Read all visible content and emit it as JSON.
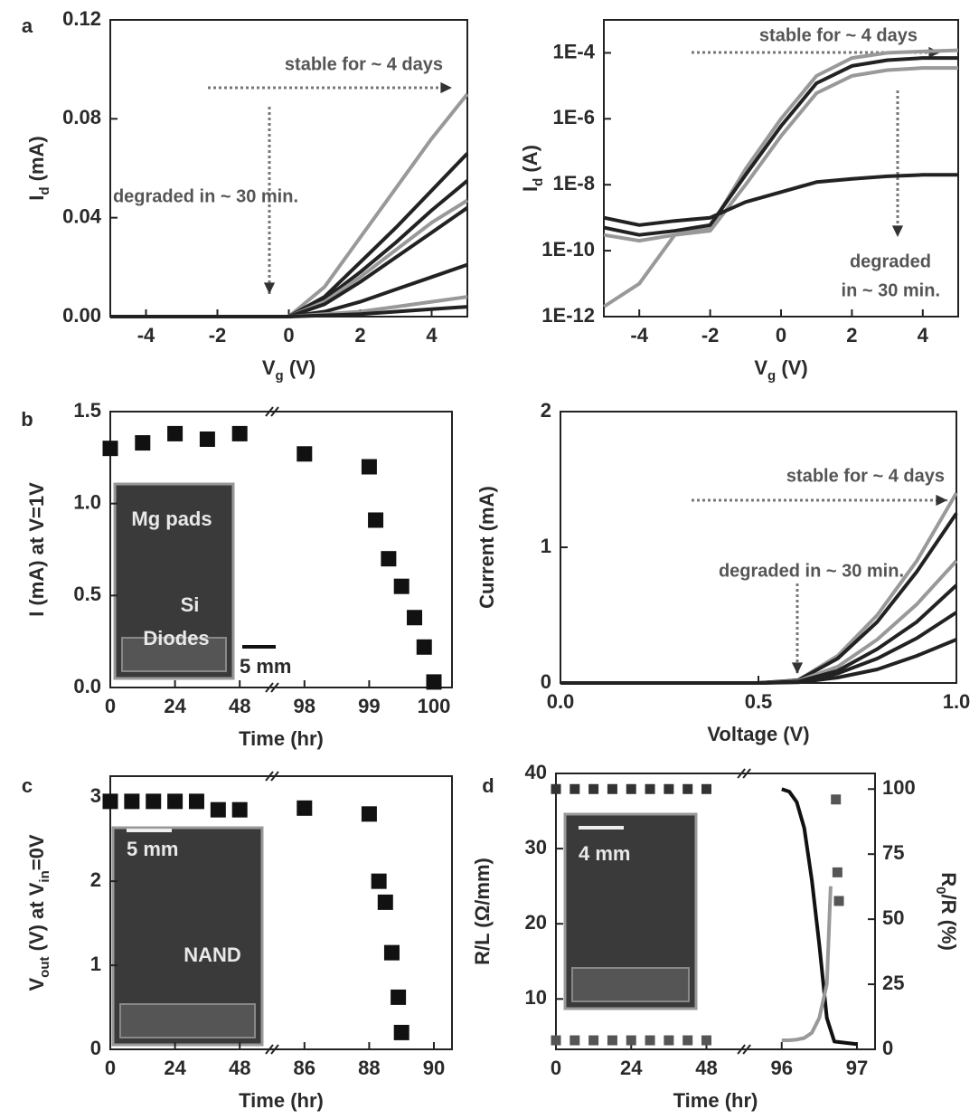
{
  "chart_data": [
    {
      "type": "line",
      "panel_label": "a",
      "xlabel": [
        "V",
        "g",
        " (V)"
      ],
      "ylabel": [
        "I",
        "d",
        " (mA)"
      ],
      "annotations": [
        "stable for ~ 4 days",
        "degraded in ~ 30 min."
      ],
      "x": [
        -5,
        -4,
        -3,
        -2,
        -1,
        0,
        1,
        2,
        3,
        4,
        5
      ],
      "xlim": [
        -5,
        5
      ],
      "xticks": [
        -4,
        -2,
        0,
        2,
        4
      ],
      "ylim": [
        0,
        0.12
      ],
      "yticks": [
        {
          "value": 0,
          "label": "0.00"
        },
        0.04,
        0.08,
        0.12
      ],
      "series": [
        {
          "color": "#999999",
          "values": [
            0,
            0,
            0,
            0,
            0,
            0,
            0.012,
            0.032,
            0.052,
            0.072,
            0.09
          ]
        },
        {
          "color": "#222222",
          "values": [
            0,
            0,
            0,
            0,
            0,
            0,
            0.008,
            0.022,
            0.036,
            0.051,
            0.066
          ]
        },
        {
          "color": "#222222",
          "values": [
            0,
            0,
            0,
            0,
            0,
            0,
            0.007,
            0.018,
            0.03,
            0.043,
            0.055
          ]
        },
        {
          "color": "#999999",
          "values": [
            0,
            0,
            0,
            0,
            0,
            0,
            0.006,
            0.016,
            0.027,
            0.038,
            0.047
          ]
        },
        {
          "color": "#222222",
          "values": [
            0,
            0,
            0,
            0,
            0,
            0,
            0.005,
            0.014,
            0.024,
            0.034,
            0.044
          ]
        },
        {
          "color": "#222222",
          "values": [
            0,
            0,
            0,
            0,
            0,
            0,
            0.002,
            0.006,
            0.011,
            0.016,
            0.021
          ]
        },
        {
          "color": "#999999",
          "values": [
            0,
            0,
            0,
            0,
            0,
            0,
            0.001,
            0.002,
            0.004,
            0.006,
            0.008
          ]
        },
        {
          "color": "#222222",
          "values": [
            0,
            0,
            0,
            0,
            0,
            0,
            0.0005,
            0.001,
            0.002,
            0.003,
            0.004
          ]
        }
      ]
    },
    {
      "type": "line",
      "log_y": true,
      "xlabel": [
        "V",
        "g",
        " (V)"
      ],
      "ylabel": [
        "I",
        "d",
        " (A)"
      ],
      "annotations": [
        "stable for ~ 4 days",
        "degraded",
        "in ~ 30 min."
      ],
      "x": [
        -5,
        -4,
        -3,
        -2,
        -1,
        0,
        1,
        2,
        3,
        4,
        5
      ],
      "xlim": [
        -5,
        5
      ],
      "xticks": [
        -4,
        -2,
        0,
        2,
        4
      ],
      "ylim": [
        1e-12,
        0.001
      ],
      "yticks": [
        {
          "value": 1e-12,
          "label": "1E-12"
        },
        {
          "value": 1e-10,
          "label": "1E-10"
        },
        {
          "value": 1e-08,
          "label": "1E-8"
        },
        {
          "value": 1e-06,
          "label": "1E-6"
        },
        {
          "value": 0.0001,
          "label": "1E-4"
        }
      ],
      "series": [
        {
          "color": "#999999",
          "values": [
            3e-10,
            2e-10,
            3e-10,
            5e-10,
            3e-08,
            1e-06,
            2e-05,
            7e-05,
            0.0001,
            0.00011,
            0.00012
          ]
        },
        {
          "color": "#222222",
          "values": [
            5e-10,
            3e-10,
            4e-10,
            6e-10,
            2e-08,
            6e-07,
            1.2e-05,
            4e-05,
            6e-05,
            7e-05,
            7e-05
          ]
        },
        {
          "color": "#999999",
          "values": [
            2e-12,
            1e-11,
            3e-10,
            4e-10,
            1e-08,
            3e-07,
            6e-06,
            2e-05,
            3e-05,
            3.5e-05,
            3.5e-05
          ]
        },
        {
          "color": "#222222",
          "values": [
            1e-09,
            6e-10,
            8e-10,
            1e-09,
            3e-09,
            6e-09,
            1.2e-08,
            1.5e-08,
            1.8e-08,
            2e-08,
            2e-08
          ]
        }
      ]
    },
    {
      "type": "scatter",
      "panel_label": "b",
      "x_axis_break": true,
      "xlabel": [
        "Time (hr)"
      ],
      "ylabel": [
        "I (mA) at V=1V"
      ],
      "inset_labels": [
        "Mg pads",
        "Si",
        "Diodes",
        "5 mm"
      ],
      "xticks": [
        0,
        24,
        48,
        98,
        99,
        100
      ],
      "ylim": [
        0,
        1.5
      ],
      "yticks": [
        {
          "value": 0,
          "label": "0.0"
        },
        0.5,
        {
          "value": 1,
          "label": "1.0"
        },
        1.5
      ],
      "series": [
        {
          "color": "#111111",
          "marker": "square",
          "x": [
            0,
            12,
            24,
            36,
            48,
            98,
            99,
            99.1,
            99.3,
            99.5,
            99.7,
            99.85,
            100
          ],
          "values": [
            1.3,
            1.33,
            1.38,
            1.35,
            1.38,
            1.27,
            1.2,
            0.91,
            0.7,
            0.55,
            0.38,
            0.22,
            0.03
          ]
        }
      ]
    },
    {
      "type": "line",
      "xlabel": [
        "Voltage (V)"
      ],
      "ylabel": [
        "Current (mA)"
      ],
      "annotations": [
        "stable for ~ 4 days",
        "degraded in ~ 30 min."
      ],
      "x": [
        0,
        0.5,
        0.6,
        0.7,
        0.8,
        0.9,
        1
      ],
      "xlim": [
        0,
        1
      ],
      "xticks": [
        {
          "value": 0,
          "label": "0.0"
        },
        0.5,
        {
          "value": 1,
          "label": "1.0"
        }
      ],
      "ylim": [
        0,
        2
      ],
      "yticks": [
        0,
        1,
        2
      ],
      "series": [
        {
          "color": "#999999",
          "values": [
            0,
            0,
            0.02,
            0.2,
            0.5,
            0.9,
            1.4
          ]
        },
        {
          "color": "#222222",
          "values": [
            0,
            0,
            0.02,
            0.18,
            0.45,
            0.82,
            1.25
          ]
        },
        {
          "color": "#999999",
          "values": [
            0,
            0,
            0.015,
            0.12,
            0.32,
            0.58,
            0.9
          ]
        },
        {
          "color": "#222222",
          "values": [
            0,
            0,
            0.01,
            0.09,
            0.25,
            0.45,
            0.72
          ]
        },
        {
          "color": "#222222",
          "values": [
            0,
            0,
            0.008,
            0.07,
            0.18,
            0.33,
            0.52
          ]
        },
        {
          "color": "#222222",
          "values": [
            0,
            0,
            0.005,
            0.04,
            0.1,
            0.2,
            0.32
          ]
        }
      ]
    },
    {
      "type": "scatter",
      "panel_label": "c",
      "x_axis_break": true,
      "xlabel": [
        "Time (hr)"
      ],
      "ylabel": [
        "V",
        "out",
        " (V) at V",
        "in",
        "=0V"
      ],
      "inset_labels": [
        "5 mm",
        "NAND"
      ],
      "xticks": [
        0,
        24,
        48,
        86,
        88,
        90
      ],
      "ylim": [
        0,
        3.25
      ],
      "yticks": [
        0,
        1,
        2,
        3
      ],
      "series": [
        {
          "color": "#111111",
          "marker": "square",
          "x": [
            0,
            8,
            16,
            24,
            32,
            40,
            48,
            86,
            88,
            88.3,
            88.5,
            88.7,
            88.9,
            89
          ],
          "values": [
            2.95,
            2.95,
            2.95,
            2.95,
            2.95,
            2.85,
            2.85,
            2.87,
            2.8,
            2.0,
            1.75,
            1.15,
            0.62,
            0.2
          ]
        }
      ]
    },
    {
      "type": "scatter",
      "panel_label": "d",
      "x_axis_break": true,
      "xlabel": [
        "Time (hr)"
      ],
      "ylabel": [
        "R/L (Ω/mm)"
      ],
      "y2label": [
        "R",
        "0",
        "/R (%)"
      ],
      "inset_labels": [
        "4 mm"
      ],
      "xticks": [
        0,
        24,
        48,
        96,
        97
      ],
      "ylim": [
        3.3,
        40
      ],
      "yticks": [
        10,
        20,
        30,
        40
      ],
      "y2lim": [
        0,
        106
      ],
      "y2ticks": [
        0,
        25,
        50,
        75,
        100
      ],
      "series": [
        {
          "color": "#555555",
          "marker": "square",
          "x": [
            0,
            6,
            12,
            18,
            24,
            30,
            36,
            42,
            48
          ],
          "values": [
            4.5,
            4.5,
            4.5,
            4.5,
            4.5,
            4.5,
            4.5,
            4.5,
            4.5
          ]
        },
        {
          "color": "#333333",
          "marker": "square",
          "axis": "y2",
          "x": [
            0,
            6,
            12,
            18,
            24,
            30,
            36,
            42,
            48
          ],
          "values": [
            100,
            100,
            100,
            100,
            100,
            100,
            100,
            100,
            100
          ]
        },
        {
          "color": "#111111",
          "axis": "y2",
          "x": [
            96,
            96.1,
            96.2,
            96.3,
            96.4,
            96.5,
            96.6,
            96.7,
            97
          ],
          "values": [
            100,
            99,
            95,
            85,
            65,
            40,
            12,
            3,
            2
          ]
        },
        {
          "color": "#999999",
          "x": [
            96,
            96.1,
            96.2,
            96.3,
            96.4,
            96.5,
            96.6,
            96.65
          ],
          "values": [
            4.5,
            4.5,
            4.6,
            4.8,
            5.5,
            7.5,
            12,
            25
          ]
        },
        {
          "color": "#555555",
          "marker": "square",
          "axis": "y2",
          "x": [
            96.72,
            96.74,
            96.76
          ],
          "values": [
            96,
            68,
            57
          ]
        }
      ]
    }
  ]
}
